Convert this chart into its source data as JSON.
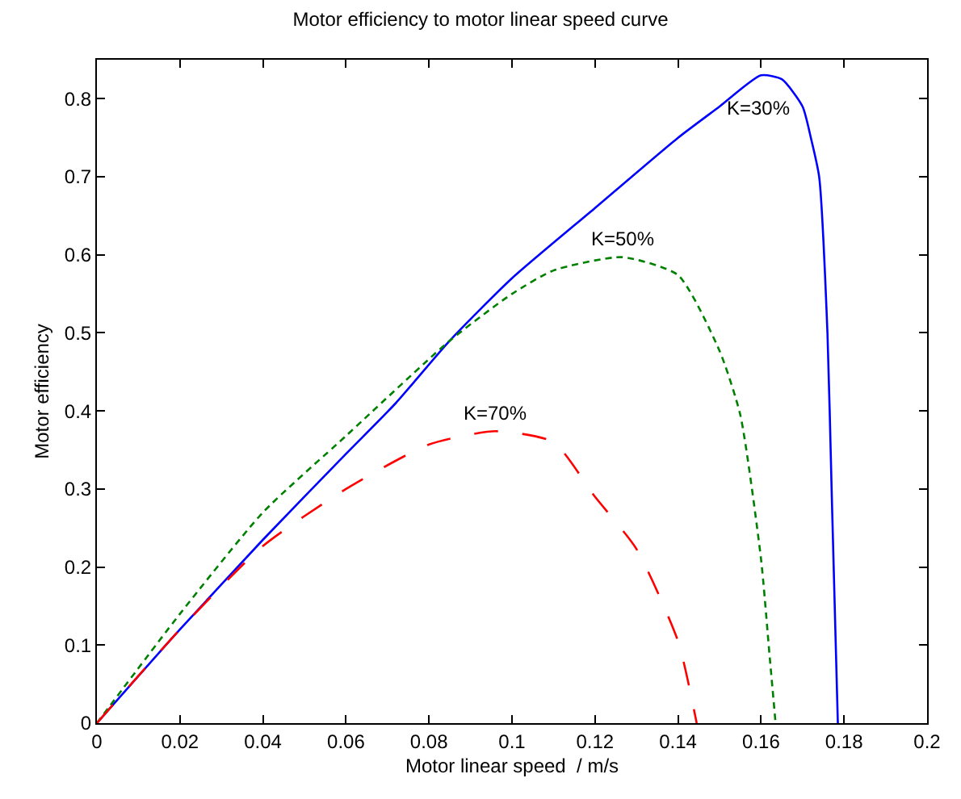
{
  "chart_data": {
    "type": "line",
    "title": "Motor efficiency to motor linear speed curve",
    "xlabel": "Motor linear speed  / m/s",
    "ylabel": "Motor efficiency",
    "xlim": [
      0,
      0.2
    ],
    "xticks": [
      0,
      0.02,
      0.04,
      0.06,
      0.08,
      0.1,
      0.12,
      0.14,
      0.16,
      0.18,
      0.2
    ],
    "ylim": [
      0,
      0.85
    ],
    "yticks": [
      0,
      0.1,
      0.2,
      0.3,
      0.4,
      0.5,
      0.6,
      0.7,
      0.8
    ],
    "legend": false,
    "marker": "none",
    "series": [
      {
        "name": "K=30%",
        "color": "#0000ff",
        "line_style": "solid",
        "x": [
          0,
          0.02,
          0.04,
          0.06,
          0.072,
          0.085,
          0.1,
          0.12,
          0.14,
          0.15,
          0.16,
          0.165,
          0.17,
          0.172,
          0.174,
          0.176,
          0.177,
          0.178,
          0.1785
        ],
        "values": [
          0,
          0.12,
          0.235,
          0.345,
          0.41,
          0.49,
          0.57,
          0.66,
          0.75,
          0.79,
          0.83,
          0.825,
          0.79,
          0.75,
          0.7,
          0.5,
          0.3,
          0.1,
          0
        ]
      },
      {
        "name": "K=50%",
        "color": "#008000",
        "line_style": "dotted",
        "x": [
          0,
          0.02,
          0.04,
          0.06,
          0.085,
          0.1,
          0.11,
          0.1265,
          0.14,
          0.15,
          0.155,
          0.16,
          0.162,
          0.1635
        ],
        "values": [
          0,
          0.14,
          0.27,
          0.368,
          0.49,
          0.55,
          0.58,
          0.597,
          0.574,
          0.477,
          0.395,
          0.21,
          0.09,
          0
        ]
      },
      {
        "name": "K=70%",
        "color": "#ff0000",
        "line_style": "dashed",
        "x": [
          0,
          0.02,
          0.04,
          0.06,
          0.08,
          0.096,
          0.11,
          0.12,
          0.13,
          0.14,
          0.1445
        ],
        "values": [
          0,
          0.12,
          0.227,
          0.3,
          0.357,
          0.374,
          0.36,
          0.29,
          0.223,
          0.105,
          0
        ]
      }
    ]
  }
}
